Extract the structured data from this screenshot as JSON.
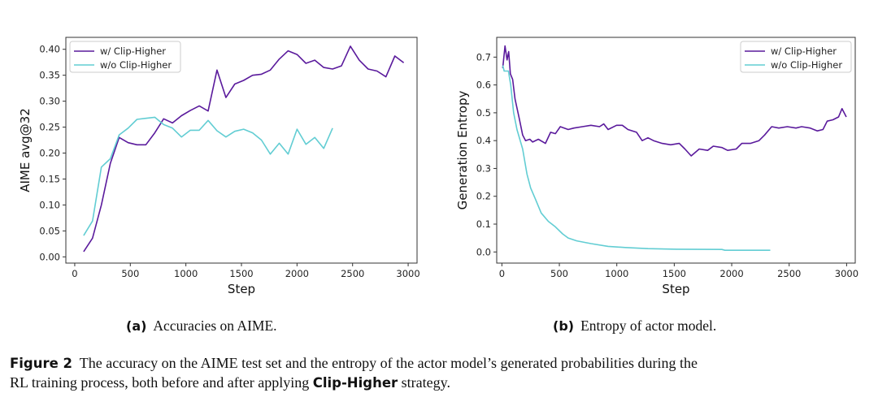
{
  "colors": {
    "with": "#5a1a9c",
    "without": "#62cdd3"
  },
  "chart_data": [
    {
      "type": "line",
      "title": "",
      "xlabel": "Step",
      "ylabel": "AIME avg@32",
      "xlim": [
        -80,
        3080
      ],
      "ylim": [
        -0.012,
        0.423
      ],
      "xticks": [
        0,
        500,
        1000,
        1500,
        2000,
        2500,
        3000
      ],
      "xtick_labels": [
        "0",
        "500",
        "1000",
        "1500",
        "2000",
        "2500",
        "3000"
      ],
      "yticks": [
        0,
        0.05,
        0.1,
        0.15,
        0.2,
        0.25,
        0.3,
        0.35,
        0.4
      ],
      "ytick_labels": [
        "0.00",
        "0.05",
        "0.10",
        "0.15",
        "0.20",
        "0.25",
        "0.30",
        "0.35",
        "0.40"
      ],
      "legend_position": "top-left",
      "grid": false,
      "series": [
        {
          "name": "w/ Clip-Higher",
          "color_key": "with",
          "x": [
            80,
            160,
            240,
            320,
            400,
            480,
            560,
            640,
            720,
            800,
            880,
            960,
            1040,
            1120,
            1200,
            1280,
            1360,
            1440,
            1520,
            1600,
            1680,
            1760,
            1840,
            1920,
            2000,
            2080,
            2160,
            2240,
            2320,
            2400,
            2480,
            2560,
            2640,
            2720,
            2800,
            2880,
            2960
          ],
          "y": [
            0.01,
            0.036,
            0.1,
            0.18,
            0.23,
            0.22,
            0.216,
            0.216,
            0.239,
            0.266,
            0.258,
            0.272,
            0.282,
            0.291,
            0.281,
            0.36,
            0.307,
            0.333,
            0.34,
            0.35,
            0.352,
            0.36,
            0.381,
            0.397,
            0.39,
            0.373,
            0.379,
            0.365,
            0.362,
            0.368,
            0.406,
            0.379,
            0.362,
            0.358,
            0.347,
            0.387,
            0.374
          ]
        },
        {
          "name": "w/o Clip-Higher",
          "color_key": "without",
          "x": [
            80,
            160,
            240,
            320,
            400,
            480,
            560,
            640,
            720,
            800,
            880,
            960,
            1040,
            1120,
            1200,
            1280,
            1360,
            1440,
            1520,
            1600,
            1680,
            1760,
            1840,
            1920,
            2000,
            2080,
            2160,
            2240,
            2320
          ],
          "y": [
            0.041,
            0.069,
            0.173,
            0.189,
            0.235,
            0.248,
            0.265,
            0.267,
            0.269,
            0.255,
            0.248,
            0.231,
            0.244,
            0.244,
            0.263,
            0.243,
            0.231,
            0.242,
            0.246,
            0.239,
            0.225,
            0.198,
            0.219,
            0.198,
            0.246,
            0.217,
            0.23,
            0.209,
            0.248
          ]
        }
      ]
    },
    {
      "type": "line",
      "title": "",
      "xlabel": "Step",
      "ylabel": "Generation Entropy",
      "xlim": [
        -45,
        3075
      ],
      "ylim": [
        -0.04,
        0.771
      ],
      "xticks": [
        0,
        500,
        1000,
        1500,
        2000,
        2500,
        3000
      ],
      "xtick_labels": [
        "0",
        "500",
        "1000",
        "1500",
        "2000",
        "2500",
        "3000"
      ],
      "yticks": [
        0,
        0.1,
        0.2,
        0.3,
        0.4,
        0.5,
        0.6,
        0.7
      ],
      "ytick_labels": [
        "0.0",
        "0.1",
        "0.2",
        "0.3",
        "0.4",
        "0.5",
        "0.6",
        "0.7"
      ],
      "legend_position": "top-right",
      "grid": false,
      "series": [
        {
          "name": "w/ Clip-Higher",
          "color_key": "with",
          "x": [
            7,
            27,
            45,
            59,
            74,
            94,
            114,
            151,
            181,
            206,
            243,
            268,
            317,
            379,
            424,
            466,
            508,
            577,
            627,
            701,
            775,
            850,
            887,
            924,
            998,
            1048,
            1097,
            1172,
            1221,
            1271,
            1320,
            1395,
            1469,
            1543,
            1593,
            1647,
            1717,
            1791,
            1840,
            1915,
            1964,
            2039,
            2088,
            2162,
            2237,
            2286,
            2348,
            2410,
            2484,
            2559,
            2608,
            2683,
            2745,
            2794,
            2831,
            2881,
            2930,
            2960,
            2997
          ],
          "y": [
            0.66,
            0.74,
            0.69,
            0.72,
            0.64,
            0.62,
            0.55,
            0.48,
            0.42,
            0.4,
            0.405,
            0.395,
            0.405,
            0.39,
            0.43,
            0.425,
            0.45,
            0.44,
            0.445,
            0.45,
            0.455,
            0.45,
            0.46,
            0.44,
            0.455,
            0.455,
            0.44,
            0.43,
            0.4,
            0.41,
            0.4,
            0.39,
            0.385,
            0.39,
            0.37,
            0.345,
            0.37,
            0.365,
            0.38,
            0.375,
            0.365,
            0.37,
            0.39,
            0.39,
            0.4,
            0.42,
            0.45,
            0.445,
            0.45,
            0.445,
            0.45,
            0.445,
            0.435,
            0.44,
            0.47,
            0.475,
            0.485,
            0.515,
            0.485
          ]
        },
        {
          "name": "w/o Clip-Higher",
          "color_key": "without",
          "x": [
            7,
            20,
            57,
            77,
            102,
            131,
            181,
            218,
            250,
            292,
            342,
            404,
            466,
            528,
            577,
            651,
            775,
            924,
            1073,
            1271,
            1518,
            1915,
            1940,
            2336
          ],
          "y": [
            0.67,
            0.65,
            0.65,
            0.6,
            0.5,
            0.44,
            0.37,
            0.28,
            0.23,
            0.19,
            0.14,
            0.11,
            0.09,
            0.065,
            0.05,
            0.04,
            0.03,
            0.02,
            0.016,
            0.012,
            0.01,
            0.009,
            0.006,
            0.006
          ]
        }
      ]
    }
  ],
  "subcaptions": [
    {
      "tag": "(a)",
      "text": "Accuracies on AIME."
    },
    {
      "tag": "(b)",
      "text": "Entropy of actor model."
    }
  ],
  "caption": {
    "label": "Figure 2",
    "line1": "The accuracy on the AIME test set and the entropy of the actor model’s generated probabilities during the",
    "line2_pre": "RL training process, both before and after applying ",
    "line2_bold": "Clip-Higher",
    "line2_post": " strategy."
  }
}
